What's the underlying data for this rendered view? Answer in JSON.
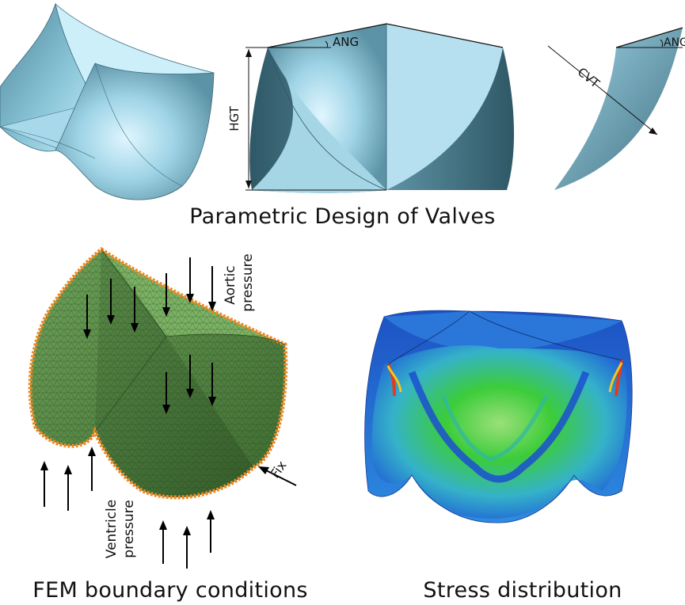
{
  "parametric": {
    "caption": "Parametric Design of Valves",
    "labels": {
      "ang": "ANG",
      "hgt": "HGT",
      "cvt": "CVT"
    }
  },
  "fem": {
    "caption": "FEM boundary conditions",
    "aortic_pressure": [
      "Aortic",
      "pressure"
    ],
    "ventricle_pressure": [
      "Ventricle",
      "pressure"
    ],
    "fix": "Fix"
  },
  "stress": {
    "caption": "Stress distribution"
  },
  "colors": {
    "valve_light": "#b9e4f4",
    "valve_mid": "#7fc0d6",
    "valve_dark": "#3f6f80",
    "mesh_green": "#5a8a45",
    "mesh_orange": "#f08a24",
    "stress_blue": "#1f5fd6",
    "stress_green": "#3ccc3a",
    "stress_red": "#e63a1e"
  }
}
